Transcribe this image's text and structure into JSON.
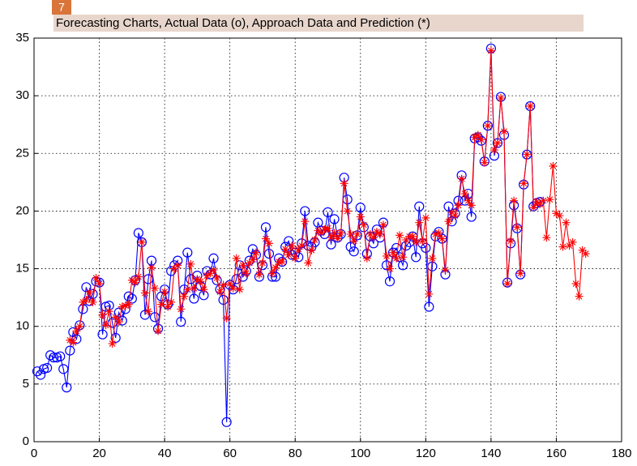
{
  "badge": "7",
  "chart_data": {
    "type": "line",
    "title": "Forecasting Charts, Actual Data (o), Approach Data and Prediction (*)",
    "x": [
      1,
      2,
      3,
      4,
      5,
      6,
      7,
      8,
      9,
      10,
      11,
      12,
      13,
      14,
      15,
      16,
      17,
      18,
      19,
      20,
      21,
      22,
      23,
      24,
      25,
      26,
      27,
      28,
      29,
      30,
      31,
      32,
      33,
      34,
      35,
      36,
      37,
      38,
      39,
      40,
      41,
      42,
      43,
      44,
      45,
      46,
      47,
      48,
      49,
      50,
      51,
      52,
      53,
      54,
      55,
      56,
      57,
      58,
      59,
      60,
      61,
      62,
      63,
      64,
      65,
      66,
      67,
      68,
      69,
      70,
      71,
      72,
      73,
      74,
      75,
      76,
      77,
      78,
      79,
      80,
      81,
      82,
      83,
      84,
      85,
      86,
      87,
      88,
      89,
      90,
      91,
      92,
      93,
      94,
      95,
      96,
      97,
      98,
      99,
      100,
      101,
      102,
      103,
      104,
      105,
      106,
      107,
      108,
      109,
      110,
      111,
      112,
      113,
      114,
      115,
      116,
      117,
      118,
      119,
      120,
      121,
      122,
      123,
      124,
      125,
      126,
      127,
      128,
      129,
      130,
      131,
      132,
      133,
      134,
      135,
      136,
      137,
      138,
      139,
      140,
      141,
      142,
      143,
      144,
      145,
      146,
      147,
      148,
      149,
      150,
      151,
      152,
      153,
      154,
      155,
      156,
      157,
      158,
      159,
      160,
      161,
      162,
      163,
      164,
      165,
      166,
      167,
      168,
      169
    ],
    "series": [
      {
        "color": "#0000ff",
        "marker": "circle",
        "values": [
          6.1,
          5.8,
          6.3,
          6.4,
          7.5,
          7.3,
          7.3,
          7.4,
          6.3,
          4.7,
          7.9,
          9.5,
          8.9,
          10.1,
          11.5,
          13.4,
          12.2,
          12.8,
          13.9,
          13.8,
          9.3,
          11.7,
          11.8,
          10.3,
          9.0,
          11.2,
          10.5,
          11.5,
          12.6,
          12.4,
          14.0,
          18.1,
          17.3,
          11.0,
          14.1,
          15.7,
          10.8,
          9.8,
          12.6,
          13.2,
          11.9,
          14.8,
          15.3,
          15.7,
          10.4,
          13.2,
          16.4,
          14.1,
          12.4,
          14.4,
          13.5,
          12.7,
          14.8,
          14.5,
          15.9,
          14.0,
          13.2,
          12.3,
          1.7,
          13.6,
          13.2,
          14.1,
          15.3,
          14.3,
          14.8,
          15.7,
          16.7,
          16.2,
          14.3,
          15.3,
          18.6,
          16.3,
          14.3,
          14.3,
          15.9,
          15.6,
          16.9,
          17.4,
          16.2,
          16.4,
          16.0,
          17.2,
          20.0,
          17.0,
          16.9,
          17.3,
          19.0,
          18.3,
          18.0,
          19.9,
          17.1,
          19.3,
          17.7,
          18.0,
          22.9,
          21.0,
          16.9,
          16.5,
          17.9,
          20.3,
          18.6,
          16.3,
          17.8,
          17.2,
          18.4,
          17.7,
          19.0,
          15.3,
          13.9,
          16.4,
          16.8,
          16.0,
          15.3,
          17.0,
          17.3,
          17.8,
          16.0,
          20.4,
          17.2,
          16.8,
          11.7,
          15.2,
          17.8,
          18.2,
          17.6,
          14.5,
          20.4,
          19.1,
          19.8,
          20.9,
          23.1,
          20.9,
          21.5,
          19.5,
          26.3,
          26.4,
          26.1,
          24.3,
          27.4,
          34.1,
          24.8,
          25.9,
          29.9,
          26.6,
          13.8,
          17.2,
          20.5,
          18.5,
          14.5,
          22.3,
          24.9,
          29.1,
          20.4,
          20.7,
          20.8,
          null,
          null,
          null,
          null,
          null,
          null,
          null,
          null,
          null,
          null,
          null,
          null,
          null,
          null
        ]
      },
      {
        "color": "#ff0000",
        "marker": "star",
        "values": [
          null,
          null,
          null,
          null,
          null,
          null,
          null,
          null,
          null,
          null,
          8.8,
          8.6,
          9.6,
          10.0,
          12.1,
          12.3,
          13.0,
          12.1,
          14.2,
          13.7,
          11.0,
          10.1,
          11.3,
          8.5,
          10.8,
          10.4,
          11.7,
          11.8,
          11.9,
          14.0,
          13.8,
          14.3,
          17.3,
          12.9,
          11.3,
          15.1,
          13.3,
          9.6,
          11.9,
          13.0,
          11.7,
          12.1,
          15.0,
          15.3,
          11.5,
          12.6,
          13.2,
          15.4,
          13.3,
          14.1,
          13.9,
          13.2,
          14.4,
          14.6,
          14.9,
          14.2,
          13.0,
          13.6,
          10.7,
          13.7,
          13.3,
          15.9,
          13.2,
          15.3,
          14.6,
          15.5,
          15.8,
          16.4,
          14.5,
          15.5,
          17.6,
          17.2,
          14.6,
          15.1,
          15.6,
          15.6,
          16.7,
          16.2,
          17.0,
          15.9,
          16.7,
          17.0,
          19.1,
          15.5,
          16.6,
          17.5,
          18.3,
          18.1,
          18.4,
          18.5,
          17.7,
          18.1,
          17.6,
          18.1,
          22.4,
          20.0,
          18.0,
          17.4,
          18.0,
          19.5,
          18.8,
          15.9,
          18.0,
          17.7,
          18.2,
          18.0,
          18.8,
          16.1,
          15.0,
          16.4,
          15.9,
          17.9,
          16.0,
          17.5,
          17.8,
          17.8,
          17.3,
          19.0,
          17.4,
          19.4,
          12.8,
          15.9,
          18.0,
          18.1,
          17.6,
          14.9,
          19.1,
          19.9,
          19.6,
          20.5,
          22.8,
          21.5,
          20.9,
          20.5,
          26.4,
          26.6,
          26.2,
          24.2,
          27.4,
          33.9,
          25.3,
          25.9,
          29.8,
          26.9,
          13.7,
          17.4,
          20.9,
          18.6,
          14.6,
          22.4,
          24.9,
          29.1,
          20.3,
          20.8,
          20.6,
          20.9,
          17.7,
          21.0,
          23.9,
          19.8,
          19.6,
          16.9,
          19.0,
          17.0,
          17.3,
          13.7,
          12.6,
          16.6,
          16.3
        ]
      }
    ],
    "xlim": [
      0,
      180
    ],
    "xticks": [
      0,
      20,
      40,
      60,
      80,
      100,
      120,
      140,
      160,
      180
    ],
    "ylim": [
      0,
      35
    ],
    "yticks": [
      0,
      5,
      10,
      15,
      20,
      25,
      30,
      35
    ],
    "grid": true
  }
}
